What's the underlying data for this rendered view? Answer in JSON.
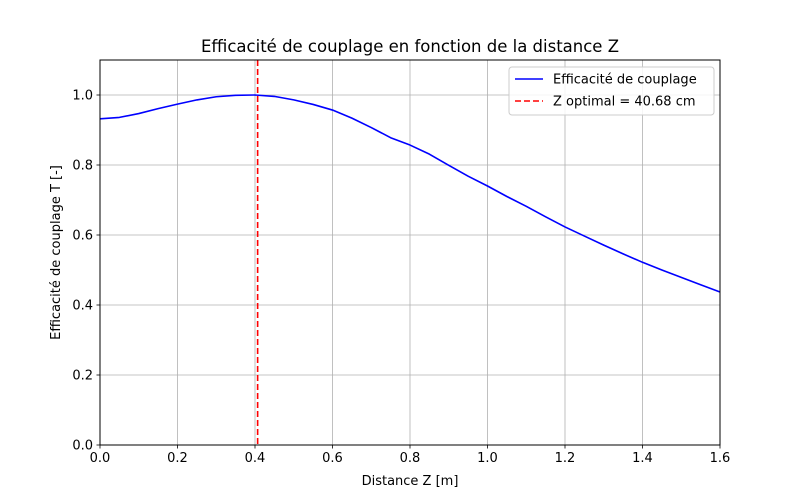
{
  "chart_data": {
    "type": "line",
    "title": "Efficacité de couplage en fonction de la distance Z",
    "xlabel": "Distance Z [m]",
    "ylabel": "Efficacité de couplage T [-]",
    "xlim": [
      0.0,
      1.6
    ],
    "ylim": [
      0.0,
      1.1
    ],
    "x_ticks": [
      "0.0",
      "0.2",
      "0.4",
      "0.6",
      "0.8",
      "1.0",
      "1.2",
      "1.4",
      "1.6"
    ],
    "y_ticks": [
      "0.0",
      "0.2",
      "0.4",
      "0.6",
      "0.8",
      "1.0"
    ],
    "grid": true,
    "legend_position": "top-right",
    "series": [
      {
        "name": "Efficacité de couplage",
        "color": "#0000ff",
        "style": "solid",
        "x": [
          0.0,
          0.05,
          0.1,
          0.15,
          0.2,
          0.25,
          0.3,
          0.35,
          0.4,
          0.45,
          0.5,
          0.55,
          0.6,
          0.65,
          0.7,
          0.75,
          0.8,
          0.85,
          0.9,
          0.95,
          1.0,
          1.05,
          1.1,
          1.15,
          1.2,
          1.25,
          1.3,
          1.35,
          1.4,
          1.45,
          1.5,
          1.55,
          1.6
        ],
        "y": [
          0.932,
          0.936,
          0.947,
          0.961,
          0.974,
          0.986,
          0.995,
          0.999,
          1.0,
          0.996,
          0.986,
          0.973,
          0.957,
          0.934,
          0.907,
          0.878,
          0.857,
          0.831,
          0.799,
          0.768,
          0.74,
          0.71,
          0.682,
          0.652,
          0.623,
          0.597,
          0.571,
          0.546,
          0.522,
          0.5,
          0.479,
          0.458,
          0.437
        ]
      }
    ],
    "vlines": [
      {
        "name": "Z optimal = 40.68 cm",
        "x": 0.4068,
        "color": "#ff0000",
        "style": "dashed"
      }
    ]
  }
}
